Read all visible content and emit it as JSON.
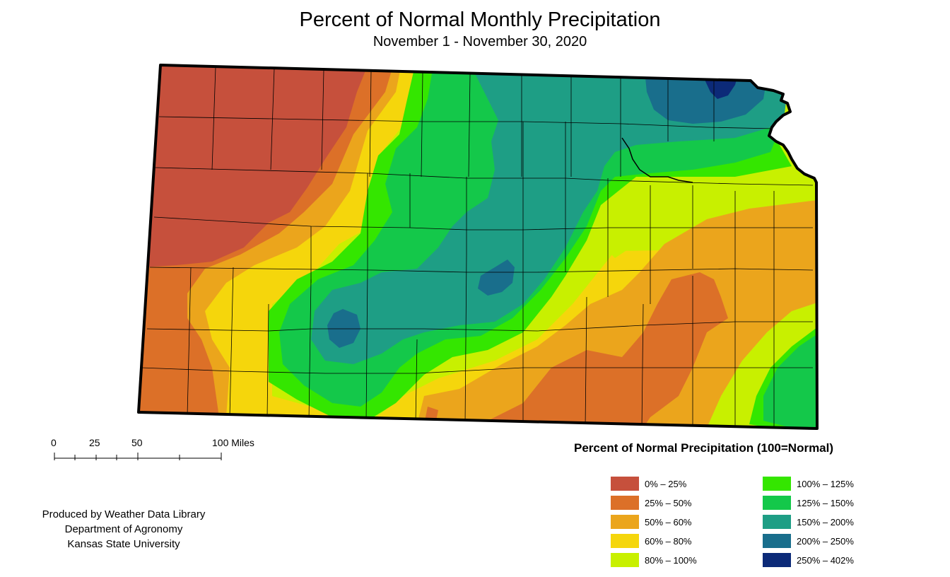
{
  "title": "Percent of Normal Monthly Precipitation",
  "subtitle": "November 1 - November 30, 2020",
  "scalebar": {
    "labels": [
      "0",
      "25",
      "50",
      "100 Miles"
    ]
  },
  "credits": [
    "Produced by Weather Data Library",
    "Department of Agronomy",
    "Kansas State University"
  ],
  "legend": {
    "title": "Percent of Normal Precipitation (100=Normal)",
    "items": [
      {
        "label": "0% – 25%",
        "color": "#c6503c"
      },
      {
        "label": "25% – 50%",
        "color": "#dc7028"
      },
      {
        "label": "50% – 60%",
        "color": "#eba51c"
      },
      {
        "label": "60% – 80%",
        "color": "#f5d60c"
      },
      {
        "label": "80% – 100%",
        "color": "#c8f000"
      },
      {
        "label": "100% – 125%",
        "color": "#34e600"
      },
      {
        "label": "125% – 150%",
        "color": "#14c84a"
      },
      {
        "label": "150% – 200%",
        "color": "#1e9e85"
      },
      {
        "label": "200% – 250%",
        "color": "#196e8c"
      },
      {
        "label": "250% – 402%",
        "color": "#0c2a78"
      }
    ]
  }
}
